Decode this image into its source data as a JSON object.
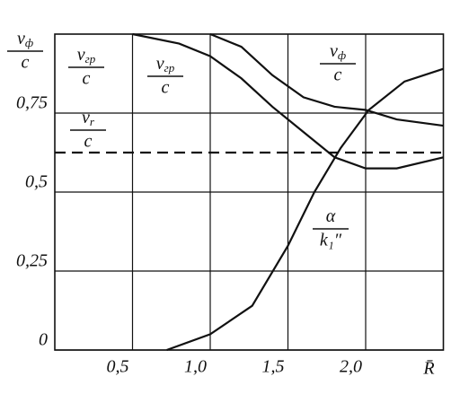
{
  "chart_data": {
    "type": "line",
    "y_label": {
      "num": "v",
      "sub": "ф",
      "den": "c"
    },
    "x_label": "R̄",
    "xlim": [
      0,
      2.5
    ],
    "ylim": [
      0,
      1
    ],
    "xticks": [
      {
        "value": 0.5,
        "label": "0,5"
      },
      {
        "value": 1.0,
        "label": "1,0"
      },
      {
        "value": 1.5,
        "label": "1,5"
      },
      {
        "value": 2.0,
        "label": "2,0"
      }
    ],
    "yticks": [
      0,
      {
        "value": 0.25,
        "label": "0,25"
      },
      {
        "value": 0.5,
        "label": "0,5"
      },
      {
        "value": 0.75,
        "label": "0,75"
      }
    ],
    "grid": true,
    "series": [
      {
        "color": "#111111",
        "dashed": false,
        "x": [
          0.5,
          0.8,
          1.0,
          1.2,
          1.4,
          1.6,
          1.8,
          2.0,
          2.2,
          2.5
        ],
        "values": [
          1.0,
          0.97,
          0.93,
          0.86,
          0.77,
          0.69,
          0.61,
          0.575,
          0.575,
          0.61
        ]
      },
      {
        "color": "#111111",
        "dashed": false,
        "x": [
          1.0,
          1.2,
          1.4,
          1.6,
          1.8,
          2.0,
          2.2,
          2.5
        ],
        "values": [
          1.0,
          0.96,
          0.87,
          0.8,
          0.77,
          0.76,
          0.73,
          0.71
        ]
      },
      {
        "color": "#111111",
        "dashed": false,
        "x": [
          0.72,
          1.0,
          1.27,
          1.5,
          1.67,
          1.84,
          2.02,
          2.25,
          2.5
        ],
        "values": [
          0.0,
          0.05,
          0.14,
          0.33,
          0.5,
          0.64,
          0.76,
          0.85,
          0.89
        ]
      },
      {
        "color": "#111111",
        "dashed": true,
        "x": [
          0,
          2.5
        ],
        "values": [
          0.625,
          0.625
        ]
      }
    ],
    "annotations": [
      {
        "num": "v",
        "sub": "гр",
        "den": "c"
      },
      {
        "num": "v",
        "sub": "гр",
        "den": "c"
      },
      {
        "num": "v",
        "sub": "ф",
        "den": "c"
      },
      {
        "num": "v",
        "sub": "r",
        "den": "c"
      },
      {
        "num": "α",
        "sub": "",
        "den": "k₁″"
      }
    ]
  }
}
